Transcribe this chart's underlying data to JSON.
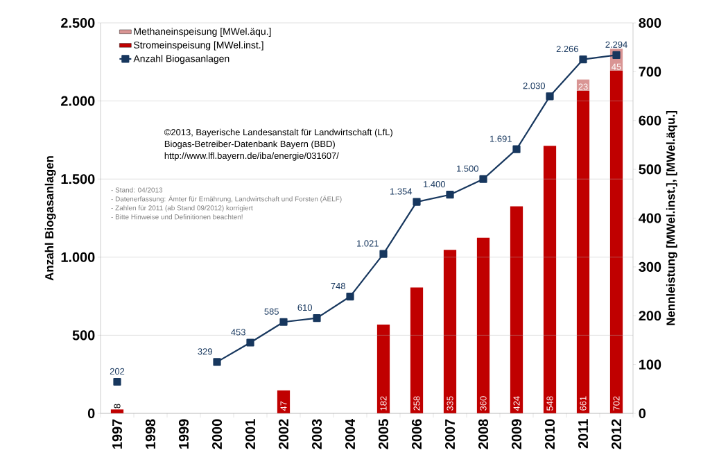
{
  "chart_data": {
    "type": "bar",
    "categories": [
      "1997",
      "1998",
      "1999",
      "2000",
      "2001",
      "2002",
      "2003",
      "2004",
      "2005",
      "2006",
      "2007",
      "2008",
      "2009",
      "2010",
      "2011",
      "2012"
    ],
    "series": [
      {
        "name": "Stromeinspeisung [MWel.inst.]",
        "axis": "y2",
        "color": "#c00000",
        "values": [
          8,
          null,
          null,
          null,
          null,
          47,
          null,
          null,
          182,
          258,
          335,
          360,
          424,
          548,
          661,
          702
        ],
        "value_labels": [
          "8",
          null,
          null,
          null,
          null,
          "47",
          null,
          null,
          "182",
          "258",
          "335",
          "360",
          "424",
          "548",
          "661",
          "702"
        ]
      },
      {
        "name": "Methaneinspeisung [MWel.äqu.]",
        "axis": "y2",
        "color": "#d99594",
        "values": [
          null,
          null,
          null,
          null,
          null,
          null,
          null,
          null,
          null,
          null,
          null,
          null,
          null,
          null,
          23,
          45
        ],
        "value_labels": [
          null,
          null,
          null,
          null,
          null,
          null,
          null,
          null,
          null,
          null,
          null,
          null,
          null,
          null,
          "23",
          "45"
        ]
      },
      {
        "name": "Anzahl Biogasanlagen",
        "type": "line",
        "axis": "y",
        "color": "#17375e",
        "marker": "square",
        "values": [
          202,
          null,
          null,
          329,
          453,
          585,
          610,
          748,
          1021,
          1354,
          1400,
          1500,
          1691,
          2030,
          2266,
          2294
        ],
        "value_labels": [
          "202",
          null,
          null,
          "329",
          "453",
          "585",
          "610",
          "748",
          "1.021",
          "1.354",
          "1.400",
          "1.500",
          "1.691",
          "2.030",
          "2.266",
          "2.294"
        ]
      }
    ],
    "stacked": true,
    "ylabel": "Anzahl Biogasanlagen",
    "y2label": "Nennleistung [MWel.inst.],  [MWel.äqu.]",
    "ylim": [
      0,
      2500
    ],
    "yticks": [
      0,
      500,
      {
        "value": 1000,
        "label": "1.000"
      },
      {
        "value": 1500,
        "label": "1.500"
      },
      {
        "value": 2000,
        "label": "2.000"
      },
      {
        "value": 2500,
        "label": "2.500"
      }
    ],
    "y2lim": [
      0,
      800
    ],
    "y2ticks": [
      0,
      100,
      200,
      300,
      400,
      500,
      600,
      700,
      800
    ],
    "grid": "y",
    "legend": "top left",
    "annotations": [
      "©2013, Bayerische Landesanstalt für Landwirtschaft (LfL)",
      "Biogas-Betreiber-Datenbank Bayern (BBD)",
      "http://www.lfl.bayern.de/iba/energie/031607/",
      "- Stand: 04/2013",
      "- Datenerfassung: Ämter für Ernährung, Landwirtschaft und Forsten (ÄELF)",
      "- Zahlen für 2011 (ab Stand 09/2012) korrigiert",
      "- Bitte Hinweise und Definitionen beachten!"
    ]
  }
}
